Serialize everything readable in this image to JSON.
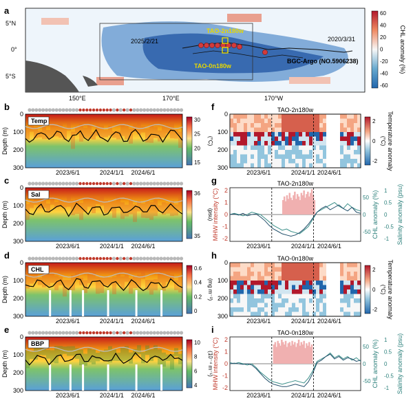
{
  "chart_data": [
    {
      "panel": "a",
      "type": "heatmap",
      "title": "",
      "colorbar": {
        "label": "CHL anomaly (%)",
        "ticks": [
          60,
          40,
          20,
          0,
          -20,
          -40,
          -60
        ]
      },
      "x_ticks": [
        "150°E",
        "170°E",
        "170°W"
      ],
      "y_ticks": [
        "5°N",
        "0°",
        "5°S"
      ],
      "annotations": [
        "2025/2/21",
        "2020/3/31",
        "TAO-2n180w",
        "TAO-0n180w",
        "BGC-Argo (NO.5906238)"
      ]
    },
    {
      "panel": "b",
      "type": "heatmap",
      "label": "Temp",
      "ylabel": "Depth (m)",
      "y_ticks": [
        "0",
        "100",
        "200",
        "300"
      ],
      "x_ticks": [
        "2023/6/1",
        "2024/1/1",
        "2024/6/1"
      ],
      "colorbar": {
        "unit": "(°C)",
        "ticks": [
          "30",
          "25",
          "20",
          "15"
        ]
      }
    },
    {
      "panel": "c",
      "type": "heatmap",
      "label": "Sal",
      "ylabel": "Depth (m)",
      "y_ticks": [
        "0",
        "100",
        "200",
        "300"
      ],
      "x_ticks": [
        "2023/6/1",
        "2024/1/1",
        "2024/6/1"
      ],
      "colorbar": {
        "unit": "(psu)",
        "ticks": [
          "36",
          "35"
        ]
      }
    },
    {
      "panel": "d",
      "type": "heatmap",
      "label": "CHL",
      "ylabel": "Depth (m)",
      "y_ticks": [
        "0",
        "100",
        "200",
        "300"
      ],
      "x_ticks": [
        "2023/6/1",
        "2024/1/1",
        "2024/6/1"
      ],
      "colorbar": {
        "unit": "(mg m⁻³)",
        "ticks": [
          "0.6",
          "0.4",
          "0.2",
          "0"
        ]
      }
    },
    {
      "panel": "e",
      "type": "heatmap",
      "label": "BBP",
      "ylabel": "Depth (m)",
      "y_ticks": [
        "0",
        "100",
        "200",
        "300"
      ],
      "x_ticks": [
        "2023/6/1",
        "2024/1/1",
        "2024/6/1"
      ],
      "colorbar": {
        "unit": "(10⁻⁴ m⁻¹)",
        "ticks": [
          "10",
          "8",
          "6",
          "4"
        ]
      }
    },
    {
      "panel": "f",
      "type": "heatmap",
      "title": "TAO-2n180w",
      "y_ticks": [
        "0",
        "100",
        "200",
        "300"
      ],
      "x_ticks": [
        "2023/6/1",
        "2024/1/1",
        "2024/6/1"
      ],
      "colorbar": {
        "label": "Temperature anomaly",
        "unit": "(°C)",
        "ticks": [
          "2",
          "0",
          "-2"
        ]
      }
    },
    {
      "panel": "g",
      "type": "line",
      "title": "TAO-2n180w",
      "ylabel": "MHW intensity (°C)",
      "y_ticks": [
        "2",
        "1",
        "0",
        "-1",
        "-2"
      ],
      "y2label": "CHL anomaly (%)",
      "y2_ticks": [
        "50",
        "0",
        "-50"
      ],
      "y3label": "Salinity anomaly (psu)",
      "y3_ticks": [
        "1",
        "0.5",
        "0",
        "-0.5",
        "-1"
      ],
      "x_ticks": [
        "2023/6/1",
        "2024/1/1",
        "2024/6/1"
      ],
      "mhw_bars_x": [
        0.4,
        0.41,
        0.42,
        0.43,
        0.44,
        0.45,
        0.46,
        0.47,
        0.48,
        0.49,
        0.5,
        0.51,
        0.52,
        0.53,
        0.54,
        0.55,
        0.56,
        0.57,
        0.58,
        0.59,
        0.6,
        0.61,
        0.62,
        0.63,
        0.64
      ],
      "mhw_bars_y": [
        1.2,
        1.5,
        1.1,
        1.6,
        1.3,
        1.8,
        1.4,
        1.2,
        1.6,
        1.9,
        1.3,
        1.7,
        1.5,
        1.2,
        1.8,
        1.6,
        2.0,
        1.4,
        1.7,
        1.9,
        1.5,
        1.8,
        2.1,
        1.6,
        1.2
      ],
      "chl": [
        0.0,
        0.1,
        0.0,
        -0.1,
        0.0,
        0.2,
        0.1,
        0.0,
        -0.3,
        -0.6,
        -0.9,
        -1.1,
        -1.3,
        -1.2,
        -1.4,
        -1.5,
        -1.6,
        -1.3,
        -1.0,
        -0.4,
        0.2,
        0.4,
        0.6,
        0.8,
        1.0,
        0.7,
        0.5,
        0.9,
        0.6,
        0.4,
        0.3
      ],
      "sal": [
        0.0,
        0.05,
        -0.05,
        0.1,
        -0.1,
        0.0,
        0.05,
        -0.2,
        -0.5,
        -0.9,
        -1.2,
        -1.4,
        -1.6,
        -1.7,
        -1.8,
        -1.7,
        -1.5,
        -1.2,
        -0.8,
        -0.3,
        0.2,
        0.5,
        0.7,
        0.4,
        0.6,
        0.8,
        0.5,
        0.3,
        0.6,
        0.2,
        0.1
      ]
    },
    {
      "panel": "h",
      "type": "heatmap",
      "title": "TAO-0n180w",
      "y_ticks": [
        "0",
        "100",
        "200",
        "300"
      ],
      "x_ticks": [
        "2023/6/1",
        "2024/1/1",
        "2024/6/1"
      ],
      "colorbar": {
        "label": "Temperature anomaly",
        "unit": "(°C)",
        "ticks": [
          "2",
          "0",
          "-2"
        ]
      }
    },
    {
      "panel": "i",
      "type": "line",
      "title": "TAO-0n180w",
      "ylabel": "MHW intensity (°C)",
      "y_ticks": [
        "2",
        "1",
        "0",
        "-1",
        "-2"
      ],
      "y2label": "CHL anomaly (%)",
      "y2_ticks": [
        "50",
        "0",
        "-50"
      ],
      "y3label": "Salinity anomaly (psu)",
      "y3_ticks": [
        "1",
        "0.5",
        "0",
        "-0.5",
        "-1"
      ],
      "x_ticks": [
        "2023/6/1",
        "2024/1/1",
        "2024/6/1"
      ],
      "mhw_bars_x": [
        0.33,
        0.34,
        0.35,
        0.36,
        0.37,
        0.38,
        0.39,
        0.4,
        0.41,
        0.42,
        0.43,
        0.44,
        0.45,
        0.46,
        0.47,
        0.48,
        0.49,
        0.5,
        0.51,
        0.52,
        0.53,
        0.54,
        0.55,
        0.56,
        0.57,
        0.58,
        0.59,
        0.6,
        0.61,
        0.62
      ],
      "mhw_bars_y": [
        1.6,
        1.8,
        1.4,
        1.9,
        1.7,
        1.5,
        2.0,
        1.8,
        1.6,
        1.9,
        1.4,
        1.7,
        1.8,
        1.5,
        1.9,
        1.6,
        1.8,
        1.4,
        1.7,
        2.0,
        1.5,
        1.8,
        1.6,
        1.9,
        1.3,
        1.7,
        1.5,
        1.8,
        1.4,
        1.6
      ],
      "chl": [
        0.1,
        0.0,
        0.1,
        0.0,
        -0.1,
        0.0,
        -0.3,
        -0.7,
        -1.0,
        -1.3,
        -1.5,
        -1.6,
        -1.7,
        -1.6,
        -1.5,
        -1.4,
        -1.5,
        -1.6,
        -1.2,
        -0.6,
        0.2,
        0.4,
        0.6,
        0.9,
        0.5,
        0.7,
        0.4,
        0.6,
        0.3,
        0.5,
        0.2
      ],
      "sal": [
        0.0,
        0.05,
        0.0,
        -0.05,
        0.0,
        -0.1,
        -0.4,
        -0.8,
        -1.2,
        -1.5,
        -1.7,
        -1.8,
        -1.9,
        -1.9,
        -1.8,
        -1.7,
        -1.8,
        -1.9,
        -1.5,
        -0.8,
        0.1,
        0.3,
        0.6,
        0.8,
        0.4,
        0.6,
        0.3,
        0.5,
        0.4,
        0.2,
        0.3
      ]
    }
  ],
  "panel_letters": [
    "a",
    "b",
    "c",
    "d",
    "e",
    "f",
    "g",
    "h",
    "i"
  ],
  "colors": {
    "red": "#c0392b",
    "teal": "#2a7f7a",
    "mhw_fill": "#f0b0b0",
    "gray_marker": "#b8b8b8",
    "red_marker": "#c0392b"
  }
}
